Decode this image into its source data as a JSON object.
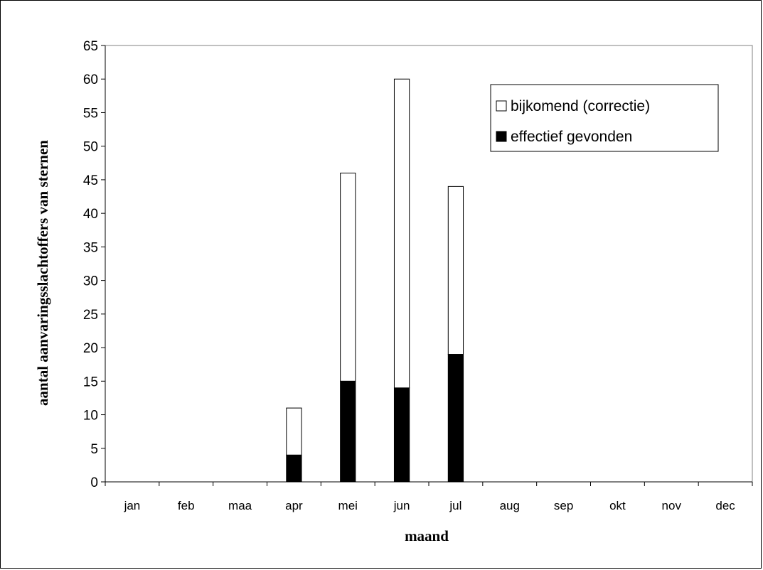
{
  "chart_data": {
    "type": "bar",
    "stacked": true,
    "categories": [
      "jan",
      "feb",
      "maa",
      "apr",
      "mei",
      "jun",
      "jul",
      "aug",
      "sep",
      "okt",
      "nov",
      "dec"
    ],
    "series": [
      {
        "name": "effectief gevonden",
        "values": [
          0,
          0,
          0,
          4,
          15,
          14,
          19,
          0,
          0,
          0,
          0,
          0
        ],
        "color": "#000000"
      },
      {
        "name": "bijkomend (correctie)",
        "values": [
          0,
          0,
          0,
          7,
          31,
          46,
          25,
          0,
          0,
          0,
          0,
          0
        ],
        "color": "#ffffff"
      }
    ],
    "title": "",
    "xlabel": "maand",
    "ylabel": "aantal aanvaringsslachtoffers van sternen",
    "ylim": [
      0,
      65
    ],
    "yticks": [
      "0",
      "5",
      "10",
      "15",
      "20",
      "25",
      "30",
      "35",
      "40",
      "45",
      "50",
      "55",
      "60",
      "65"
    ],
    "grid": false,
    "legend_position": "top-right"
  }
}
